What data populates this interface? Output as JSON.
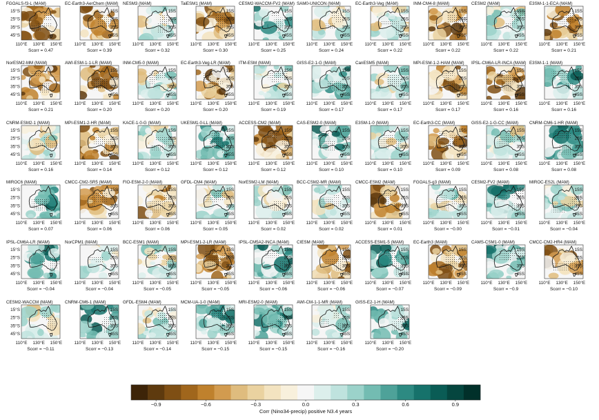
{
  "chart_data": {
    "type": "heatmap",
    "description_units": "Map panels of correlation between Nino3.4 index and precipitation over Australia (MAM season)",
    "season": "MAM",
    "longitude_ticks": [
      "110°E",
      "130°E",
      "150°E"
    ],
    "latitude_ticks": [
      "15°S",
      "25°S",
      "35°S",
      "45°S"
    ],
    "latitude_ticks_right": [
      "15S",
      "25S",
      "35S",
      "45S"
    ],
    "score_label": "Scorr",
    "panels": [
      {
        "model": "FGOALS-f3-L (MAM)",
        "scorr": "0.47",
        "scorr_value": 0.47,
        "palette": "brown"
      },
      {
        "model": "EC-Earth3-AerChem (MAM)",
        "scorr": "0.39",
        "scorr_value": 0.39,
        "palette": "brown"
      },
      {
        "model": "NESM3 (MAM)",
        "scorr": "0.32",
        "scorr_value": 0.32,
        "palette": "mixed"
      },
      {
        "model": "TaiESM1 (MAM)",
        "scorr": "0.30",
        "scorr_value": 0.3,
        "palette": "brown"
      },
      {
        "model": "CESM2-WACCM-FV2 (MAM)",
        "scorr": "0.25",
        "scorr_value": 0.25,
        "palette": "teal"
      },
      {
        "model": "SAM0-UNICON (MAM)",
        "scorr": "0.24",
        "scorr_value": 0.24,
        "palette": "mixed"
      },
      {
        "model": "EC-Earth3-Veg (MAM)",
        "scorr": "0.22",
        "scorr_value": 0.22,
        "palette": "mixed"
      },
      {
        "model": "INM-CM4-8 (MAM)",
        "scorr": "0.22",
        "scorr_value": 0.22,
        "palette": "brown"
      },
      {
        "model": "CESM2 (MAM)",
        "scorr": "0.22",
        "scorr_value": 0.22,
        "palette": "mixed"
      },
      {
        "model": "E3SM-1-1-ECA (MAM)",
        "scorr": "0.21",
        "scorr_value": 0.21,
        "palette": "brown"
      },
      {
        "model": "NorESM2-MM (MAM)",
        "scorr": "0.21",
        "scorr_value": 0.21,
        "palette": "brown"
      },
      {
        "model": "AWI-ESM-1-1-LR (MAM)",
        "scorr": "0.20",
        "scorr_value": 0.2,
        "palette": "brown"
      },
      {
        "model": "INM-CM5-0 (MAM)",
        "scorr": "0.20",
        "scorr_value": 0.2,
        "palette": "mixed"
      },
      {
        "model": "EC-Earth3-Veg-LR (MAM)",
        "scorr": "0.20",
        "scorr_value": 0.2,
        "palette": "brown"
      },
      {
        "model": "ITM-ESM (MAM)",
        "scorr": "0.19",
        "scorr_value": 0.19,
        "palette": "mixed"
      },
      {
        "model": "GISS-E2-1-G (MAM)",
        "scorr": "0.17",
        "scorr_value": 0.17,
        "palette": "teal"
      },
      {
        "model": "CanESM5 (MAM)",
        "scorr": "0.17",
        "scorr_value": 0.17,
        "palette": "mixed"
      },
      {
        "model": "MPI-ESM-1-2-HAM (MAM)",
        "scorr": "0.17",
        "scorr_value": 0.17,
        "palette": "brown"
      },
      {
        "model": "IPSL-CM6A-LR-INCA (MAM)",
        "scorr": "0.16",
        "scorr_value": 0.16,
        "palette": "brown"
      },
      {
        "model": "E3SM-1-1 (MAM)",
        "scorr": "0.16",
        "scorr_value": 0.16,
        "palette": "teal"
      },
      {
        "model": "CNRM-ESM2-1 (MAM)",
        "scorr": "0.16",
        "scorr_value": 0.16,
        "palette": "mixed"
      },
      {
        "model": "MPI-ESM1-2-HR (MAM)",
        "scorr": "0.14",
        "scorr_value": 0.14,
        "palette": "brown"
      },
      {
        "model": "KACE-1-0-G (MAM)",
        "scorr": "0.12",
        "scorr_value": 0.12,
        "palette": "mixed"
      },
      {
        "model": "UKESM1-0-LL (MAM)",
        "scorr": "0.12",
        "scorr_value": 0.12,
        "palette": "teal"
      },
      {
        "model": "ACCESS-CM2 (MAM)",
        "scorr": "0.12",
        "scorr_value": 0.12,
        "palette": "brown"
      },
      {
        "model": "CAS-ESM2-0 (MAM)",
        "scorr": "0.10",
        "scorr_value": 0.1,
        "palette": "teal"
      },
      {
        "model": "E3SM-1-0 (MAM)",
        "scorr": "0.10",
        "scorr_value": 0.1,
        "palette": "mixed"
      },
      {
        "model": "EC-Earth3-CC (MAM)",
        "scorr": "0.09",
        "scorr_value": 0.09,
        "palette": "brown"
      },
      {
        "model": "GISS-E2-1-G-CC (MAM)",
        "scorr": "0.08",
        "scorr_value": 0.08,
        "palette": "mixed"
      },
      {
        "model": "CNRM-CM6-1-HR (MAM)",
        "scorr": "0.08",
        "scorr_value": 0.08,
        "palette": "teal"
      },
      {
        "model": "MIROC6 (MAM)",
        "scorr": "0.07",
        "scorr_value": 0.07,
        "palette": "teal"
      },
      {
        "model": "CMCC-CM2-SR5 (MAM)",
        "scorr": "0.06",
        "scorr_value": 0.06,
        "palette": "brown"
      },
      {
        "model": "FIO-ESM-2-0 (MAM)",
        "scorr": "0.06",
        "scorr_value": 0.06,
        "palette": "brown"
      },
      {
        "model": "GFDL-CM4 (MAM)",
        "scorr": "0.05",
        "scorr_value": 0.05,
        "palette": "mixed"
      },
      {
        "model": "NorESM2-LM (MAM)",
        "scorr": "0.02",
        "scorr_value": 0.02,
        "palette": "mixed"
      },
      {
        "model": "BCC-CSM2-MR (MAM)",
        "scorr": "0.02",
        "scorr_value": 0.02,
        "palette": "mixed"
      },
      {
        "model": "CMCC-ESM2 (MAM)",
        "scorr": "0.01",
        "scorr_value": 0.01,
        "palette": "brown"
      },
      {
        "model": "FGOALS-g3 (MAM)",
        "scorr": "−0.00",
        "scorr_value": -0.0,
        "palette": "mixed"
      },
      {
        "model": "CESM2-FV2 (MAM)",
        "scorr": "−0.01",
        "scorr_value": -0.01,
        "palette": "teal"
      },
      {
        "model": "MIROC-ES2L (MAM)",
        "scorr": "−0.04",
        "scorr_value": -0.04,
        "palette": "mixed"
      },
      {
        "model": "IPSL-CM6A-LR (MAM)",
        "scorr": "−0.04",
        "scorr_value": -0.04,
        "palette": "teal"
      },
      {
        "model": "NorCPM1 (MAM)",
        "scorr": "−0.04",
        "scorr_value": -0.04,
        "palette": "mixed"
      },
      {
        "model": "BCC-ESM1 (MAM)",
        "scorr": "−0.05",
        "scorr_value": -0.05,
        "palette": "mixed"
      },
      {
        "model": "MPI-ESM1-2-LR (MAM)",
        "scorr": "−0.05",
        "scorr_value": -0.05,
        "palette": "brown"
      },
      {
        "model": "IPSL-CM5A2-INCA (MAM)",
        "scorr": "−0.06",
        "scorr_value": -0.06,
        "palette": "teal"
      },
      {
        "model": "CIESM (MAM)",
        "scorr": "−0.06",
        "scorr_value": -0.06,
        "palette": "brown"
      },
      {
        "model": "ACCESS-ESM1-5 (MAM)",
        "scorr": "−0.07",
        "scorr_value": -0.07,
        "palette": "teal"
      },
      {
        "model": "EC-Earth3 (MAM)",
        "scorr": "−0.09",
        "scorr_value": -0.09,
        "palette": "brown"
      },
      {
        "model": "CAMS-CSM1-0 (MAM)",
        "scorr": "−0.9",
        "scorr_value": -0.9,
        "palette": "teal"
      },
      {
        "model": "CMCC-CM2-HR4 (MAM)",
        "scorr": "−0.10",
        "scorr_value": -0.1,
        "palette": "brown"
      },
      {
        "model": "CESM2-WACCM (MAM)",
        "scorr": "−0.11",
        "scorr_value": -0.11,
        "palette": "mixed"
      },
      {
        "model": "CNRM-CM6-1 (MAM)",
        "scorr": "−0.13",
        "scorr_value": -0.13,
        "palette": "teal"
      },
      {
        "model": "GFDL-ESM4 (MAM)",
        "scorr": "−0.14",
        "scorr_value": -0.14,
        "palette": "mixed"
      },
      {
        "model": "MCM-UA-1-0 (MAM)",
        "scorr": "−0.15",
        "scorr_value": -0.15,
        "palette": "teal"
      },
      {
        "model": "MRI-ESM2-0 (MAM)",
        "scorr": "−0.15",
        "scorr_value": -0.15,
        "palette": "teal"
      },
      {
        "model": "AWI-CM-1-1-MR (MAM)",
        "scorr": "−0.16",
        "scorr_value": -0.16,
        "palette": "mixed"
      },
      {
        "model": "GISS-E2-1-H (MAM)",
        "scorr": "−0.20",
        "scorr_value": -0.2,
        "palette": "teal"
      }
    ],
    "colorbar": {
      "label": "Corr (Nino34-precip) positive N3.4 years",
      "range": [
        -1.05,
        1.05
      ],
      "ticks": [
        "−0.9",
        "−0.6",
        "−0.3",
        "0.0",
        "0.3",
        "0.6",
        "0.9"
      ],
      "tick_values": [
        -0.9,
        -0.6,
        -0.3,
        0.0,
        0.3,
        0.6,
        0.9
      ],
      "bin_edges": [
        -1.05,
        -0.95,
        -0.85,
        -0.75,
        -0.65,
        -0.55,
        -0.45,
        -0.35,
        -0.25,
        -0.15,
        -0.05,
        0.05,
        0.15,
        0.25,
        0.35,
        0.45,
        0.55,
        0.65,
        0.75,
        0.85,
        0.95,
        1.05
      ],
      "colors": [
        "#3d2408",
        "#5e3a0e",
        "#7f4f14",
        "#a0661c",
        "#bf812d",
        "#d29b4f",
        "#dfbc7e",
        "#ead2a0",
        "#f3e3c0",
        "#f8f0dc",
        "#f6f6f6",
        "#dcefec",
        "#bfe3de",
        "#9bd2ca",
        "#73bcb2",
        "#4ea299",
        "#2d8a82",
        "#16726b",
        "#0a5c55",
        "#05463f",
        "#01302a"
      ]
    }
  }
}
